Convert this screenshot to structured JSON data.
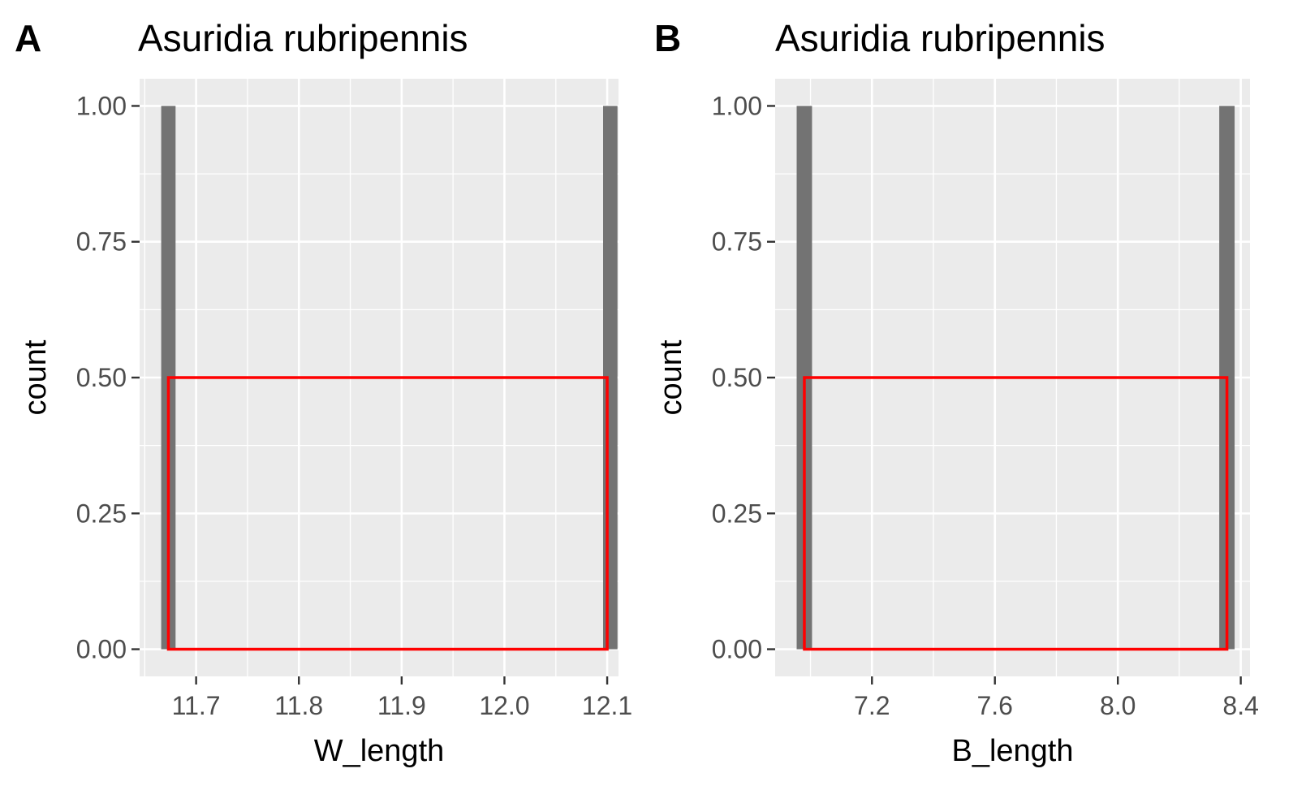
{
  "chart_data": [
    {
      "type": "bar",
      "tag": "A",
      "title": "Asuridia rubripennis",
      "xlabel": "W_length",
      "ylabel": "count",
      "xlim": [
        11.645,
        12.111
      ],
      "ylim": [
        -0.05,
        1.05
      ],
      "x_ticks": [
        11.7,
        11.8,
        11.9,
        12.0,
        12.1
      ],
      "x_tick_labels": [
        "11.7",
        "11.8",
        "11.9",
        "12.0",
        "12.1"
      ],
      "y_ticks": [
        0,
        0.25,
        0.5,
        0.75,
        1
      ],
      "y_tick_labels": [
        "0.00",
        "0.25",
        "0.50",
        "0.75",
        "1.00"
      ],
      "bars": [
        {
          "xmin": 11.666,
          "xmax": 11.68,
          "count": 1
        },
        {
          "xmin": 12.096,
          "xmax": 12.11,
          "count": 1
        }
      ],
      "highlight_rect": {
        "xmin": 11.673,
        "xmax": 12.1,
        "ymin": 0,
        "ymax": 0.5,
        "color": "#ff0000"
      },
      "bar_color": "#737373",
      "panel_background": "#ebebeb",
      "grid": true
    },
    {
      "type": "bar",
      "tag": "B",
      "title": "Asuridia rubripennis",
      "xlabel": "B_length",
      "ylabel": "count",
      "xlim": [
        6.885,
        8.43
      ],
      "ylim": [
        -0.05,
        1.05
      ],
      "x_ticks": [
        7.2,
        7.6,
        8.0,
        8.4
      ],
      "x_tick_labels": [
        "7.2",
        "7.6",
        "8.0",
        "8.4"
      ],
      "y_ticks": [
        0,
        0.25,
        0.5,
        0.75,
        1
      ],
      "y_tick_labels": [
        "0.00",
        "0.25",
        "0.50",
        "0.75",
        "1.00"
      ],
      "bars": [
        {
          "xmin": 6.955,
          "xmax": 7.005,
          "count": 1
        },
        {
          "xmin": 8.33,
          "xmax": 8.38,
          "count": 1
        }
      ],
      "highlight_rect": {
        "xmin": 6.98,
        "xmax": 8.355,
        "ymin": 0,
        "ymax": 0.5,
        "color": "#ff0000"
      },
      "bar_color": "#737373",
      "panel_background": "#ebebeb",
      "grid": true
    }
  ]
}
